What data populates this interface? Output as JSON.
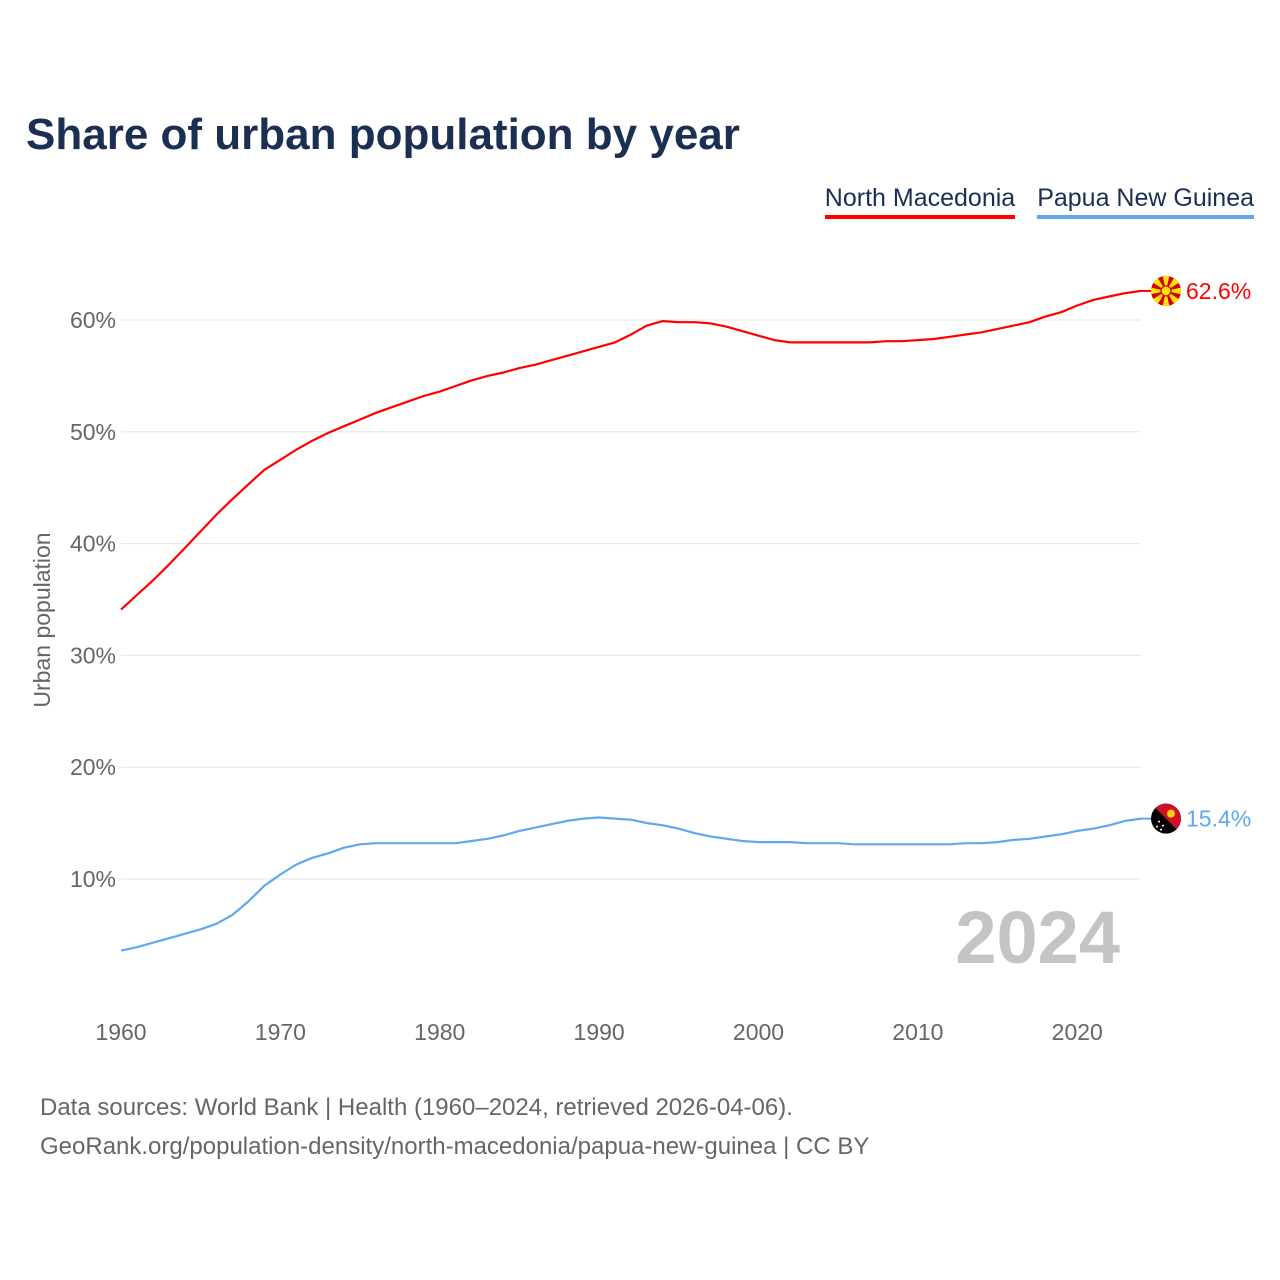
{
  "title": "Share of urban population by year",
  "footer": {
    "line1": "Data sources: World Bank | Health (1960–2024, retrieved 2026-04-06).",
    "line2": "GeoRank.org/population-density/north-macedonia/papua-new-guinea | CC BY"
  },
  "year_watermark": "2024",
  "chart_data": {
    "type": "line",
    "title": "Share of urban population by year",
    "xlabel": "",
    "ylabel": "Urban population",
    "xlim": [
      1960,
      2024
    ],
    "ylim": [
      0,
      65
    ],
    "x_ticks": [
      1960,
      1970,
      1980,
      1990,
      2000,
      2010,
      2020
    ],
    "x_tick_labels": [
      "1960",
      "1970",
      "1980",
      "1990",
      "2000",
      "2010",
      "2020"
    ],
    "y_ticks": [
      10,
      20,
      30,
      40,
      50,
      60
    ],
    "y_tick_labels": [
      "10%",
      "20%",
      "30%",
      "40%",
      "50%",
      "60%"
    ],
    "grid": true,
    "legend_position": "top-right",
    "x": [
      1960,
      1961,
      1962,
      1963,
      1964,
      1965,
      1966,
      1967,
      1968,
      1969,
      1970,
      1971,
      1972,
      1973,
      1974,
      1975,
      1976,
      1977,
      1978,
      1979,
      1980,
      1981,
      1982,
      1983,
      1984,
      1985,
      1986,
      1987,
      1988,
      1989,
      1990,
      1991,
      1992,
      1993,
      1994,
      1995,
      1996,
      1997,
      1998,
      1999,
      2000,
      2001,
      2002,
      2003,
      2004,
      2005,
      2006,
      2007,
      2008,
      2009,
      2010,
      2011,
      2012,
      2013,
      2014,
      2015,
      2016,
      2017,
      2018,
      2019,
      2020,
      2021,
      2022,
      2023,
      2024
    ],
    "series": [
      {
        "name": "North Macedonia",
        "color": "#ff0000",
        "end_label": "62.6%",
        "flag": "north-macedonia-flag",
        "values": [
          34.1,
          35.4,
          36.7,
          38.1,
          39.6,
          41.1,
          42.6,
          44.0,
          45.3,
          46.6,
          47.5,
          48.4,
          49.2,
          49.9,
          50.5,
          51.1,
          51.7,
          52.2,
          52.7,
          53.2,
          53.6,
          54.1,
          54.6,
          55.0,
          55.3,
          55.7,
          56.0,
          56.4,
          56.8,
          57.2,
          57.6,
          58.0,
          58.7,
          59.5,
          59.9,
          59.8,
          59.8,
          59.7,
          59.4,
          59.0,
          58.6,
          58.2,
          58.0,
          58.0,
          58.0,
          58.0,
          58.0,
          58.0,
          58.1,
          58.1,
          58.2,
          58.3,
          58.5,
          58.7,
          58.9,
          59.2,
          59.5,
          59.8,
          60.3,
          60.7,
          61.3,
          61.8,
          62.1,
          62.4,
          62.6
        ]
      },
      {
        "name": "Papua New Guinea",
        "color": "#5fa8ee",
        "end_label": "15.4%",
        "flag": "papua-new-guinea-flag",
        "values": [
          3.6,
          3.9,
          4.3,
          4.7,
          5.1,
          5.5,
          6.0,
          6.8,
          8.0,
          9.4,
          10.4,
          11.3,
          11.9,
          12.3,
          12.8,
          13.1,
          13.2,
          13.2,
          13.2,
          13.2,
          13.2,
          13.2,
          13.4,
          13.6,
          13.9,
          14.3,
          14.6,
          14.9,
          15.2,
          15.4,
          15.5,
          15.4,
          15.3,
          15.0,
          14.8,
          14.5,
          14.1,
          13.8,
          13.6,
          13.4,
          13.3,
          13.3,
          13.3,
          13.2,
          13.2,
          13.2,
          13.1,
          13.1,
          13.1,
          13.1,
          13.1,
          13.1,
          13.1,
          13.2,
          13.2,
          13.3,
          13.5,
          13.6,
          13.8,
          14.0,
          14.3,
          14.5,
          14.8,
          15.2,
          15.4
        ]
      }
    ]
  }
}
